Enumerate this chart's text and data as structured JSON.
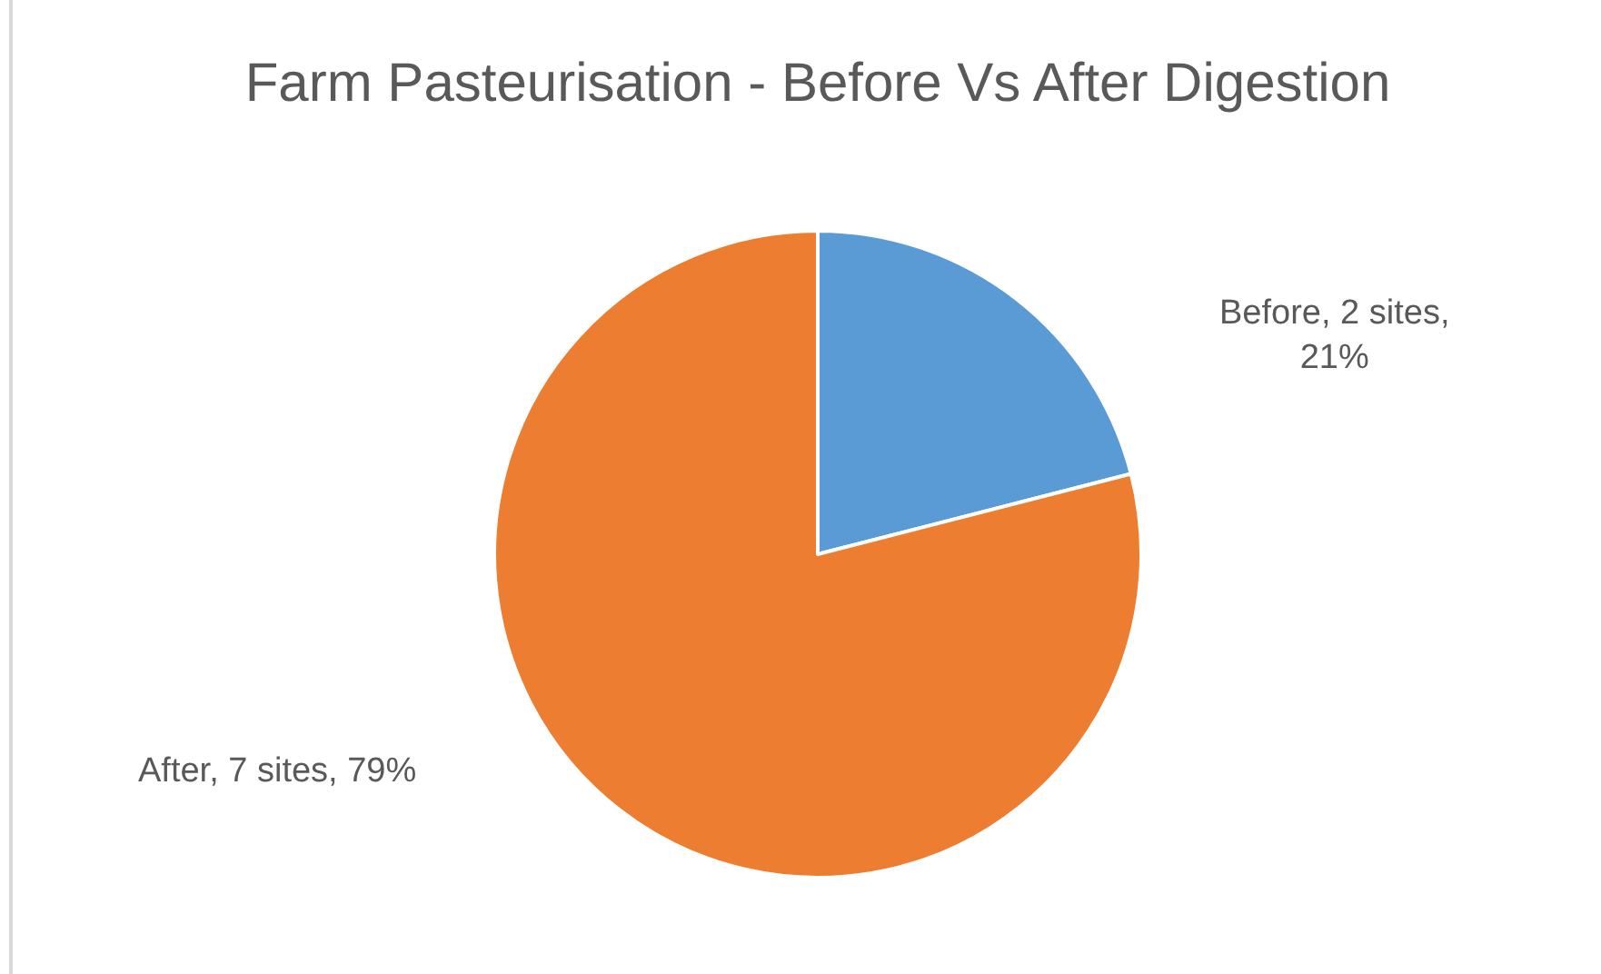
{
  "chart_data": {
    "type": "pie",
    "title": "Farm Pasteurisation - Before Vs After Digestion",
    "categories": [
      "Before",
      "After"
    ],
    "values": [
      21,
      79
    ],
    "colors": [
      "#5b9bd5",
      "#ed7d31"
    ],
    "value_labels": [
      "2 sites, 21%",
      "7 sites, 79%"
    ],
    "legend": false
  }
}
